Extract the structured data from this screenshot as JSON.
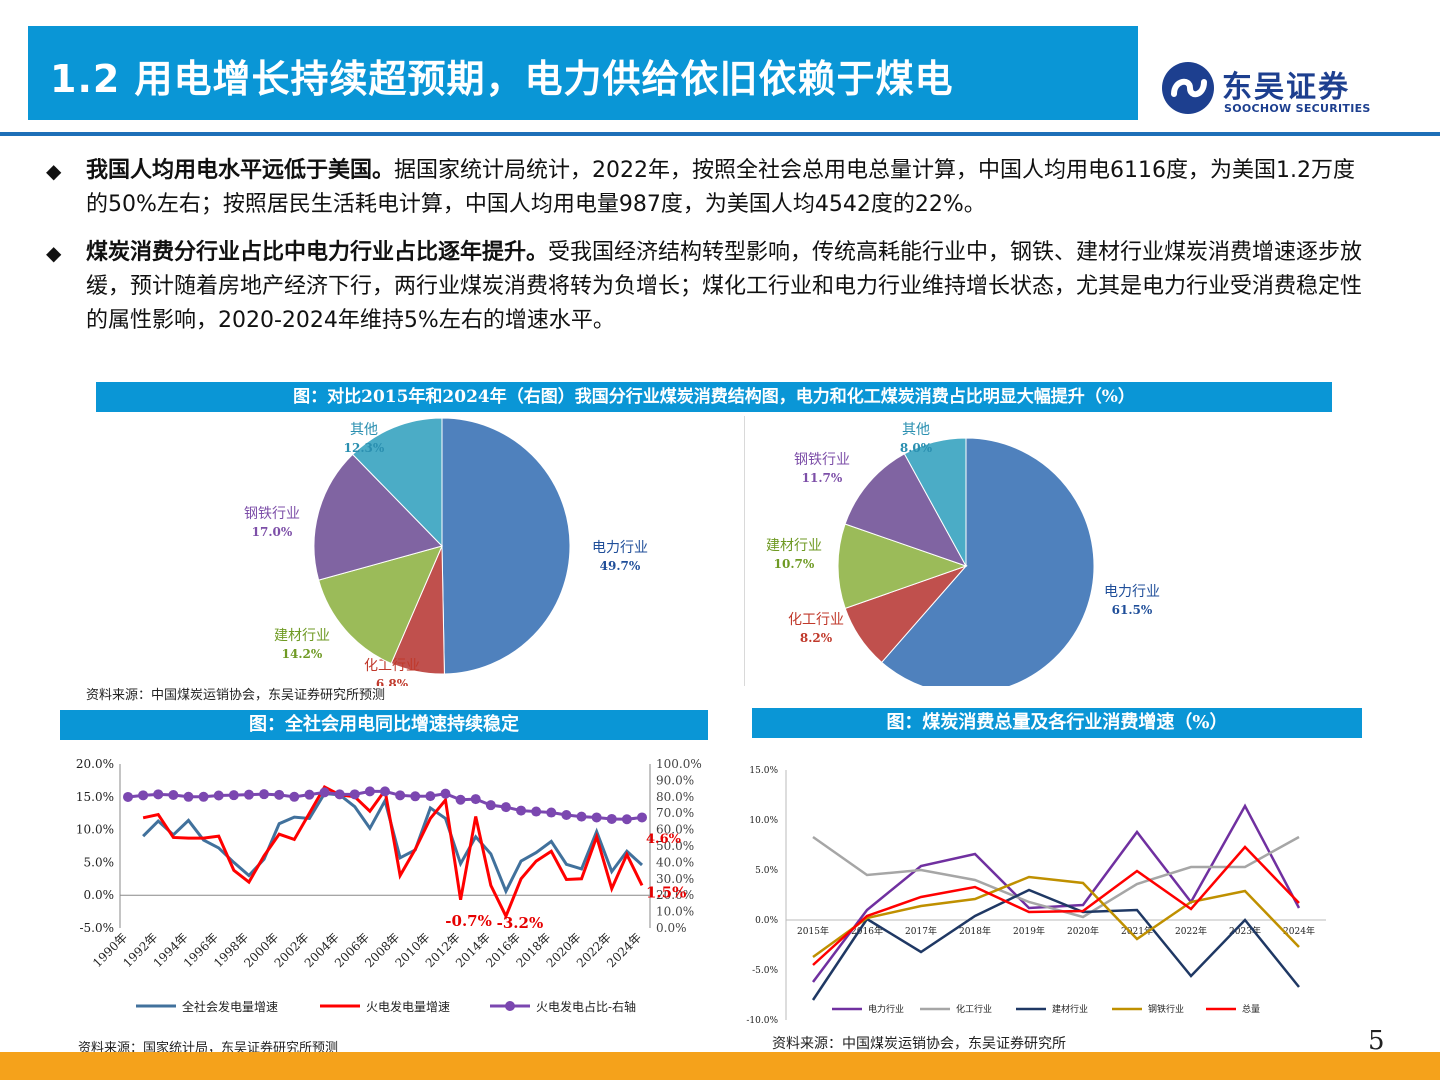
{
  "header": {
    "title": "1.2 用电增长持续超预期，电力供给依旧依赖于煤电",
    "logo_cn": "东吴证券",
    "logo_en": "SOOCHOW SECURITIES"
  },
  "bullets": [
    {
      "lead": "我国人均用电水平远低于美国。",
      "body": "据国家统计局统计，2022年，按照全社会总用电总量计算，中国人均用电6116度，为美国1.2万度的50%左右；按照居民生活耗电计算，中国人均用电量987度，为美国人均4542度的22%。"
    },
    {
      "lead": "煤炭消费分行业占比中电力行业占比逐年提升。",
      "body": "受我国经济结构转型影响，传统高耗能行业中，钢铁、建材行业煤炭消费增速逐步放缓，预计随着房地产经济下行，两行业煤炭消费将转为负增长；煤化工行业和电力行业维持增长状态，尤其是电力行业受消费稳定性的属性影响，2020-2024年维持5%左右的增速水平。"
    }
  ],
  "figures": {
    "pie_title": "图：对比2015年和2024年（右图）我国分行业煤炭消费结构图，电力和化工煤炭消费占比明显大幅提升（%）",
    "pie_source": "资料来源：中国煤炭运销协会，东吴证券研究所预测",
    "power_title": "图：全社会用电同比增速持续稳定",
    "power_source": "资料来源：国家统计局，东吴证券研究所预测",
    "coal_title": "图：煤炭消费总量及各行业消费增速（%）",
    "coal_source": "资料来源：中国煤炭运销协会，东吴证券研究所"
  },
  "page_number": "5",
  "colors": {
    "brand_blue": "#0a96d6",
    "navy": "#1d3f8f",
    "orange": "#f5a21b"
  },
  "chart_data": [
    {
      "type": "pie",
      "slices": [
        {
          "label": "电力行业",
          "value": 49.7,
          "display": "49.7%",
          "color": "#4f81bd",
          "label_color": "#1f4e99"
        },
        {
          "label": "化工行业",
          "value": 6.8,
          "display": "6.8%",
          "color": "#c0504d",
          "label_color": "#c0392b"
        },
        {
          "label": "建材行业",
          "value": 14.2,
          "display": "14.2%",
          "color": "#9bbb59",
          "label_color": "#6f9a24"
        },
        {
          "label": "钢铁行业",
          "value": 17.0,
          "display": "17.0%",
          "color": "#8064a2",
          "label_color": "#7d4fa8"
        },
        {
          "label": "其他",
          "value": 12.3,
          "display": "12.3%",
          "color": "#4bacc6",
          "label_color": "#2a8fb0"
        }
      ]
    },
    {
      "type": "pie",
      "slices": [
        {
          "label": "电力行业",
          "value": 61.5,
          "display": "61.5%",
          "color": "#4f81bd",
          "label_color": "#1f4e99"
        },
        {
          "label": "化工行业",
          "value": 8.2,
          "display": "8.2%",
          "color": "#c0504d",
          "label_color": "#c0392b"
        },
        {
          "label": "建材行业",
          "value": 10.7,
          "display": "10.7%",
          "color": "#9bbb59",
          "label_color": "#6f9a24"
        },
        {
          "label": "钢铁行业",
          "value": 11.7,
          "display": "11.7%",
          "color": "#8064a2",
          "label_color": "#7d4fa8"
        },
        {
          "label": "其他",
          "value": 8.0,
          "display": "8.0%",
          "color": "#4bacc6",
          "label_color": "#2a8fb0"
        }
      ]
    },
    {
      "type": "line",
      "x": [
        "1990年",
        "1991年",
        "1992年",
        "1993年",
        "1994年",
        "1995年",
        "1996年",
        "1997年",
        "1998年",
        "1999年",
        "2000年",
        "2001年",
        "2002年",
        "2003年",
        "2004年",
        "2005年",
        "2006年",
        "2007年",
        "2008年",
        "2009年",
        "2010年",
        "2011年",
        "2012年",
        "2013年",
        "2014年",
        "2015年",
        "2016年",
        "2017年",
        "2018年",
        "2019年",
        "2020年",
        "2021年",
        "2022年",
        "2023年",
        "2024年"
      ],
      "x_tick_labels": [
        "1990年",
        "1992年",
        "1994年",
        "1996年",
        "1998年",
        "2000年",
        "2002年",
        "2004年",
        "2006年",
        "2008年",
        "2010年",
        "2012年",
        "2014年",
        "2016年",
        "2018年",
        "2020年",
        "2022年",
        "2024年"
      ],
      "y_left": {
        "min": -5,
        "max": 20,
        "ticks": [
          "20.0%",
          "15.0%",
          "10.0%",
          "5.0%",
          "0.0%",
          "-5.0%"
        ]
      },
      "y_right": {
        "min": 0,
        "max": 100,
        "ticks": [
          "100.0%",
          "90.0%",
          "80.0%",
          "70.0%",
          "60.0%",
          "50.0%",
          "40.0%",
          "30.0%",
          "20.0%",
          "10.0%",
          "0.0%"
        ]
      },
      "series": [
        {
          "name": "全社会发电量增速",
          "axis": "left",
          "color": "#41719c",
          "values": [
            null,
            9.0,
            11.3,
            9.2,
            11.4,
            8.4,
            7.2,
            5.0,
            3.0,
            5.5,
            10.9,
            11.9,
            11.7,
            15.5,
            15.3,
            13.5,
            10.2,
            14.4,
            5.7,
            6.9,
            13.3,
            11.7,
            4.8,
            8.9,
            6.3,
            0.6,
            5.2,
            6.5,
            8.2,
            4.7,
            4.0,
            9.7,
            3.6,
            6.7,
            4.6
          ]
        },
        {
          "name": "火电发电量增速",
          "axis": "left",
          "color": "#ff0000",
          "values": [
            null,
            11.8,
            12.3,
            8.8,
            8.7,
            8.7,
            9.0,
            3.8,
            2.0,
            6.0,
            9.3,
            8.5,
            12.5,
            16.5,
            15.3,
            15.0,
            12.8,
            16.0,
            3.0,
            7.0,
            11.7,
            14.5,
            -0.7,
            12.0,
            1.5,
            -3.2,
            2.5,
            5.2,
            6.7,
            2.4,
            2.5,
            8.9,
            1.0,
            6.2,
            1.5
          ]
        },
        {
          "name": "火电发电占比-右轴",
          "axis": "right",
          "color": "#7b47b0",
          "values": [
            79.9,
            80.9,
            81.5,
            81.1,
            80.0,
            80.0,
            80.8,
            81.0,
            81.3,
            81.6,
            81.2,
            80.0,
            81.3,
            82.7,
            81.5,
            81.5,
            83.3,
            83.3,
            80.9,
            80.3,
            80.4,
            81.9,
            78.2,
            78.6,
            74.9,
            73.7,
            71.6,
            71.0,
            70.4,
            68.9,
            67.9,
            67.4,
            66.5,
            66.3,
            67.4
          ]
        }
      ],
      "annotations": [
        "4.6%",
        "1.5%",
        "-0.7%",
        "-3.2%"
      ]
    },
    {
      "type": "line",
      "x": [
        "2015年",
        "2016年",
        "2017年",
        "2018年",
        "2019年",
        "2020年",
        "2021年",
        "2022年",
        "2023年",
        "2024年"
      ],
      "y": {
        "min": -10,
        "max": 15,
        "ticks": [
          "15.0%",
          "10.0%",
          "5.0%",
          "0.0%",
          "-5.0%",
          "-10.0%"
        ]
      },
      "series": [
        {
          "name": "电力行业",
          "color": "#7030a0",
          "values": [
            -6.2,
            1.0,
            5.4,
            6.6,
            1.2,
            1.5,
            8.8,
            1.8,
            11.4,
            1.2
          ]
        },
        {
          "name": "化工行业",
          "color": "#a6a6a6",
          "values": [
            8.3,
            4.5,
            5.0,
            4.0,
            1.8,
            0.3,
            3.6,
            5.3,
            5.3,
            8.3
          ]
        },
        {
          "name": "建材行业",
          "color": "#1f3864",
          "values": [
            -8.0,
            0.1,
            -3.2,
            0.4,
            3.0,
            0.8,
            1.0,
            -5.6,
            0.0,
            -6.7
          ]
        },
        {
          "name": "钢铁行业",
          "color": "#bf9000",
          "values": [
            -3.7,
            0.2,
            1.4,
            2.1,
            4.3,
            3.7,
            -1.9,
            1.8,
            2.9,
            -2.7
          ]
        },
        {
          "name": "总量",
          "color": "#ff0000",
          "values": [
            -4.5,
            0.4,
            2.3,
            3.3,
            0.8,
            0.9,
            4.9,
            1.1,
            7.3,
            1.7
          ]
        }
      ]
    }
  ]
}
